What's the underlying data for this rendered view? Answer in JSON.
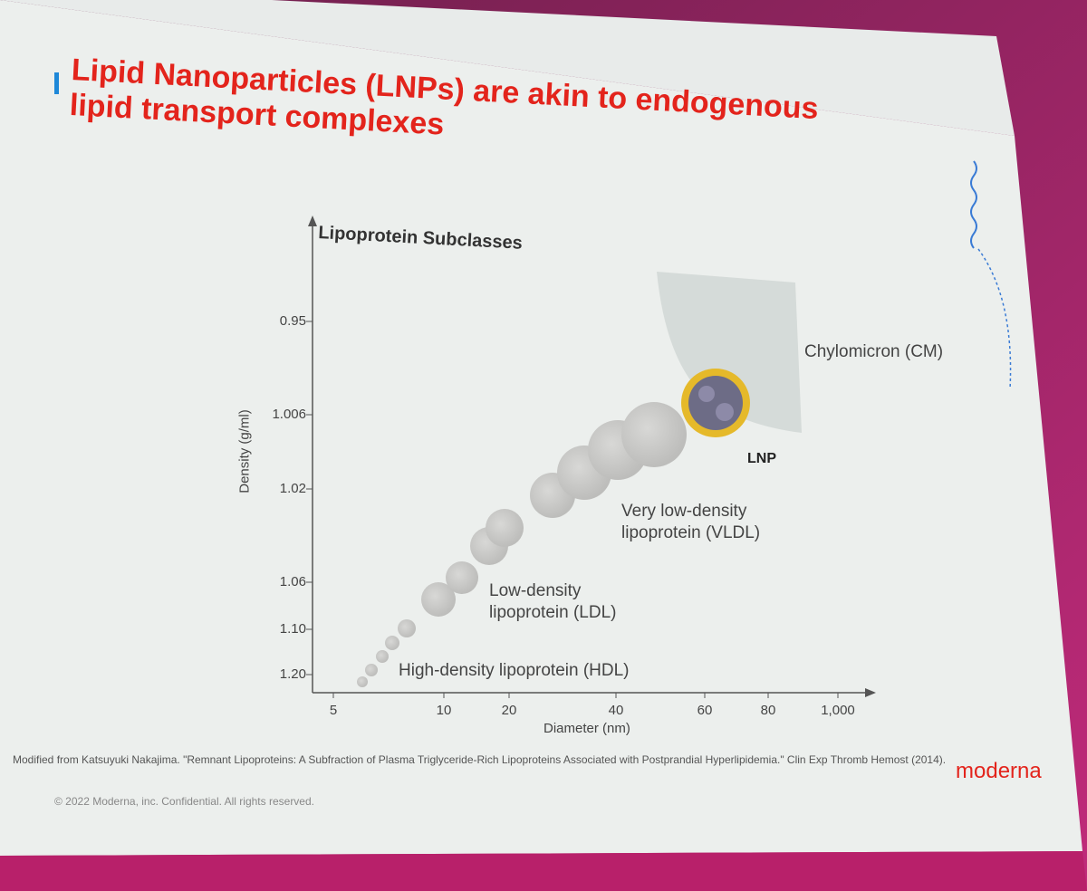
{
  "slide": {
    "title": "Lipid Nanoparticles (LNPs) are akin to endogenous lipid transport complexes",
    "figure": {
      "title": "Lipoprotein Subclasses",
      "y_axis_label": "Density (g/ml)",
      "x_axis_label": "Diameter (nm)",
      "y_ticks": [
        "0.95",
        "1.006",
        "1.02",
        "1.06",
        "1.10",
        "1.20"
      ],
      "x_ticks": [
        "5",
        "10",
        "20",
        "40",
        "60",
        "80",
        "1,000"
      ],
      "labels": [
        "Chylomicron (CM)",
        "LNP",
        "Very low-density lipoprotein (VLDL)",
        "Low-density lipoprotein (LDL)",
        "High-density lipoprotein (HDL)"
      ]
    },
    "citation": "Modified from Katsuyuki Nakajima. \"Remnant Lipoproteins: A Subfraction of Plasma Triglyceride-Rich Lipoproteins Associated with Postprandial Hyperlipidemia.\" Clin Exp Thromb Hemost (2014).",
    "copyright": "© 2022 Moderna, inc. Confidential. All rights reserved.",
    "logo": "moderna"
  }
}
